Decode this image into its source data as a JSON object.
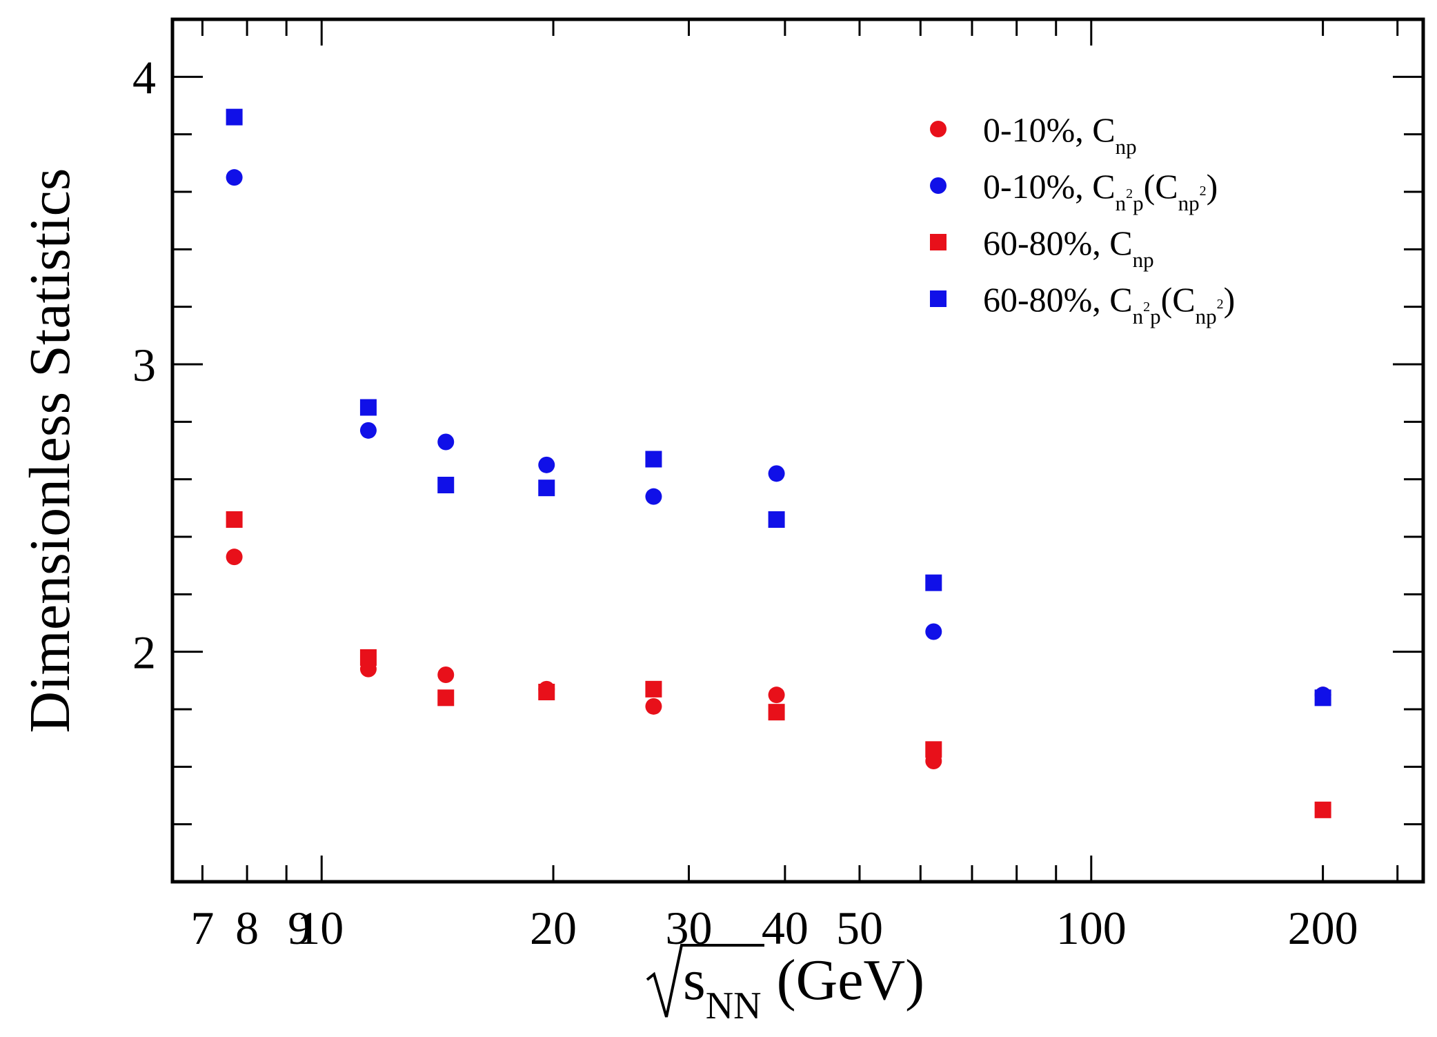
{
  "chart_data": {
    "type": "scatter",
    "title": "",
    "xlabel": "√s_NN (GeV)",
    "xlabel_parts": {
      "radicand": "s",
      "subscript": "NN",
      "unit": "(GeV)"
    },
    "ylabel": "Dimensionless Statistics",
    "x_scale": "log",
    "xlim": [
      6.4,
      270
    ],
    "ylim": [
      1.2,
      4.2
    ],
    "grid": false,
    "legend_position": "top-right",
    "x_ticks": [
      7,
      8,
      9,
      10,
      20,
      30,
      40,
      50,
      100,
      200
    ],
    "x_tick_labels": [
      "7",
      "8",
      "9",
      "10",
      "20",
      "30",
      "40",
      "50",
      "100",
      "200"
    ],
    "y_ticks": [
      2,
      3,
      4
    ],
    "y_tick_labels": [
      "2",
      "3",
      "4"
    ],
    "series": [
      {
        "label_main": "0-10%, C",
        "label_sub": "np",
        "label_tail": "",
        "marker": "circle",
        "color": "#e8101a",
        "x": [
          7.7,
          11.5,
          14.5,
          19.6,
          27,
          39,
          62.4,
          200
        ],
        "y": [
          2.33,
          1.94,
          1.92,
          1.87,
          1.81,
          1.85,
          1.62,
          1.85
        ]
      },
      {
        "label_main": "0-10%, C",
        "label_sub": "n",
        "label_sup": "2",
        "label_sub2": "p",
        "label_paren_main": "C",
        "label_paren_sub": "np",
        "label_paren_sup": "2",
        "marker": "circle",
        "color": "#1010e8",
        "x": [
          7.7,
          11.5,
          14.5,
          19.6,
          27,
          39,
          62.4,
          200
        ],
        "y": [
          3.65,
          2.77,
          2.73,
          2.65,
          2.54,
          2.62,
          2.07,
          1.85
        ]
      },
      {
        "label_main": "60-80%, C",
        "label_sub": "np",
        "label_tail": "",
        "marker": "square",
        "color": "#e8101a",
        "x": [
          7.7,
          11.5,
          14.5,
          19.6,
          27,
          39,
          62.4,
          200
        ],
        "y": [
          2.46,
          1.98,
          1.84,
          1.86,
          1.87,
          1.79,
          1.66,
          1.45
        ]
      },
      {
        "label_main": "60-80%, C",
        "label_sub": "n",
        "label_sup": "2",
        "label_sub2": "p",
        "label_paren_main": "C",
        "label_paren_sub": "np",
        "label_paren_sup": "2",
        "marker": "square",
        "color": "#1010e8",
        "x": [
          7.7,
          11.5,
          14.5,
          19.6,
          27,
          39,
          62.4,
          200
        ],
        "y": [
          3.86,
          2.85,
          2.58,
          2.57,
          2.67,
          2.46,
          2.24,
          1.84
        ]
      }
    ]
  }
}
